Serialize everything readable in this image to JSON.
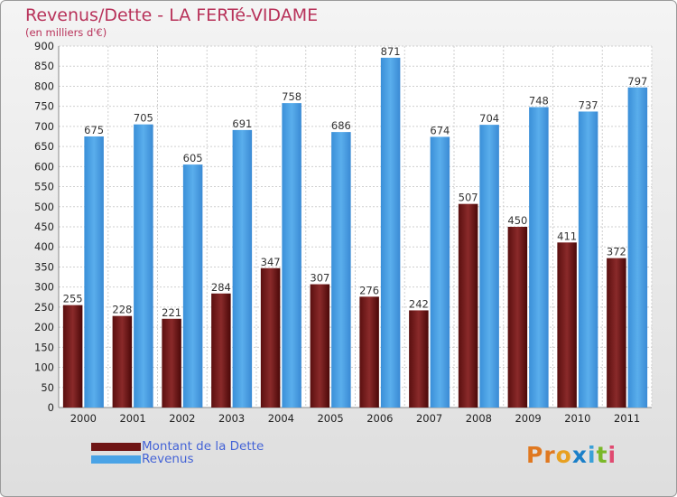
{
  "title": "Revenus/Dette - LA FERTé-VIDAME",
  "subtitle": "(en milliers d'€)",
  "logo": {
    "letters": [
      "P",
      "r",
      "o",
      "x",
      "i",
      "t",
      "i"
    ],
    "colors": [
      "#e07820",
      "#e07820",
      "#e8a020",
      "#1a7fc8",
      "#3aa0d8",
      "#7ab828",
      "#e04a70"
    ]
  },
  "colors": {
    "debt": "#6e1414",
    "revenue": "#4aa3e6"
  },
  "legend": {
    "debt_label": "Montant de la Dette",
    "revenue_label": "Revenus"
  },
  "chart_data": {
    "type": "bar",
    "categories": [
      "2000",
      "2001",
      "2002",
      "2003",
      "2004",
      "2005",
      "2006",
      "2007",
      "2008",
      "2009",
      "2010",
      "2011"
    ],
    "series": [
      {
        "name": "Montant de la Dette",
        "values": [
          255,
          228,
          221,
          284,
          347,
          307,
          276,
          242,
          507,
          450,
          411,
          372
        ]
      },
      {
        "name": "Revenus",
        "values": [
          675,
          705,
          605,
          691,
          758,
          686,
          871,
          674,
          704,
          748,
          737,
          797
        ]
      }
    ],
    "ylim": [
      0,
      900
    ],
    "yticks": [
      0,
      50,
      100,
      150,
      200,
      250,
      300,
      350,
      400,
      450,
      500,
      550,
      600,
      650,
      700,
      750,
      800,
      850,
      900
    ],
    "grid": true
  }
}
